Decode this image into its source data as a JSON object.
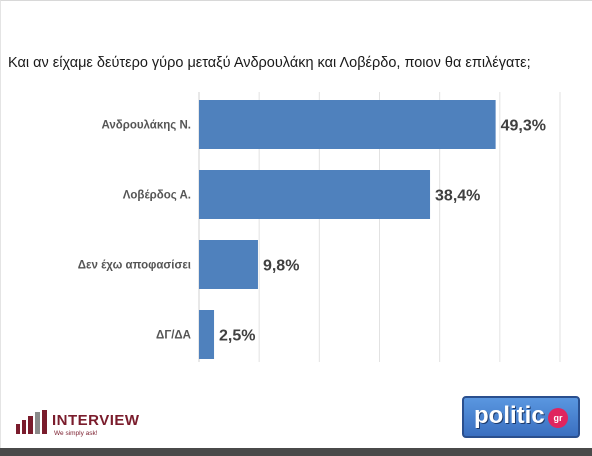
{
  "chart_data": {
    "type": "bar",
    "orientation": "horizontal",
    "title": "Και αν είχαμε δεύτερο γύρο μεταξύ Ανδρουλάκη και Λοβέρδο, ποιον θα επιλέγατε;",
    "categories": [
      "Ανδρουλάκης Ν.",
      "Λοβέρδος Α.",
      "Δεν έχω αποφασίσει",
      "ΔΓ/ΔΑ"
    ],
    "values": [
      49.3,
      38.4,
      9.8,
      2.5
    ],
    "value_labels": [
      "49,3%",
      "38,4%",
      "9,8%",
      "2,5%"
    ],
    "xlim": [
      0,
      60
    ],
    "grid": true,
    "bar_color": "#4f81bd"
  },
  "branding": {
    "left_wordmark": "INTERVIEW",
    "left_tagline": "We simply ask!",
    "right_logo": "politic",
    "right_badge": "gr"
  }
}
